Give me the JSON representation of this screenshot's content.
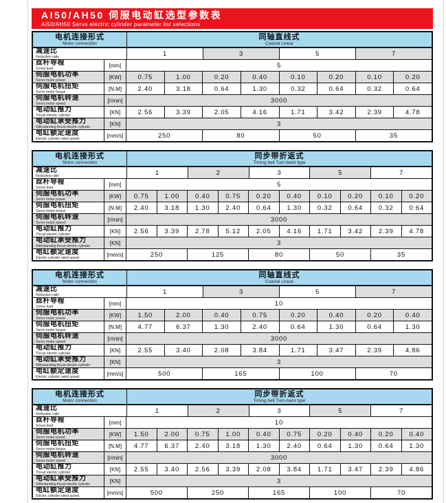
{
  "header": {
    "title": "AI50/AH50 伺服电动缸选型参数表",
    "subtitle": "AI50/AH50  Servo electric cylinder parameter list selections"
  },
  "colors": {
    "accent_red": "#e9141d",
    "header_blue": "#a6d9f0",
    "cell_gray": "#dedede"
  },
  "row_labels": {
    "connection": {
      "zh": "电机连接形式",
      "en": "Motor connection"
    },
    "ratio": {
      "zh": "减速比",
      "en": "Reduction ratio",
      "unit": ""
    },
    "lead": {
      "zh": "丝杆导程",
      "en": "Screw lead",
      "unit": "[mm]"
    },
    "power": {
      "zh": "伺服电机功率",
      "en": "Servo motor power",
      "unit": "[KW]"
    },
    "torque": {
      "zh": "伺服电机扭矩",
      "en": "Servo motor torque",
      "unit": "[N.M]"
    },
    "speed": {
      "zh": "伺服电机转速",
      "en": "Servo motor speed",
      "unit": "[r/min]"
    },
    "thrust": {
      "zh": "电动缸推力",
      "en": "Thrust electric cylinder",
      "unit": "[KN]"
    },
    "withstand": {
      "zh": "电动缸承受推力",
      "en": "Withstanding thrust electric cylinder",
      "unit": "[KN]"
    },
    "rated": {
      "zh": "电缸额定速度",
      "en": "Electric cylinder rated speed",
      "unit": "[mm/s]"
    }
  },
  "tables": [
    {
      "type_zh": "同轴直线式",
      "type_en": "Coaxial Linear",
      "ratios": [
        "1",
        "3",
        "5",
        "7"
      ],
      "screw_lead": "5",
      "power": [
        "0.75",
        "1.00",
        "0.20",
        "0.40",
        "0.10",
        "0.20",
        "0.10",
        "0.20"
      ],
      "torque": [
        "2.40",
        "3.18",
        "0.64",
        "1.30",
        "0.32",
        "0.64",
        "0.32",
        "0.64"
      ],
      "motor_speed": "3000",
      "thrust": [
        "2.56",
        "3.39",
        "2.05",
        "4.16",
        "1.71",
        "3.42",
        "2.39",
        "4.78"
      ],
      "withstand": "3",
      "rated_speed": [
        "250",
        "80",
        "50",
        "35"
      ]
    },
    {
      "type_zh": "同步带折返式",
      "type_en": "Timing belt Turn-back type",
      "ratios": [
        "1",
        "2",
        "3",
        "5",
        "7"
      ],
      "screw_lead": "5",
      "power": [
        "0.75",
        "1.00",
        "0.40",
        "0.75",
        "0.20",
        "0.40",
        "0.10",
        "0.20",
        "0.10",
        "0.20"
      ],
      "torque": [
        "2.40",
        "3.18",
        "1.30",
        "2.40",
        "0.64",
        "1.30",
        "0.32",
        "0.64",
        "0.32",
        "0.64"
      ],
      "motor_speed": "3000",
      "thrust": [
        "2.56",
        "3.39",
        "2.78",
        "5.12",
        "2.05",
        "4.16",
        "1.71",
        "3.42",
        "2.39",
        "4.78"
      ],
      "withstand": "3",
      "rated_speed": [
        "250",
        "125",
        "80",
        "50",
        "35"
      ]
    },
    {
      "type_zh": "同轴直线式",
      "type_en": "Coaxial Linear",
      "ratios": [
        "1",
        "3",
        "5",
        "7"
      ],
      "screw_lead": "10",
      "power": [
        "1.50",
        "2.00",
        "0.40",
        "0.75",
        "0.20",
        "0.40",
        "0.20",
        "0.40"
      ],
      "torque": [
        "4.77",
        "6.37",
        "1.30",
        "2.40",
        "0.64",
        "1.30",
        "0.64",
        "1.30"
      ],
      "motor_speed": "3000",
      "thrust": [
        "2.55",
        "3.40",
        "2.08",
        "3.84",
        "1.71",
        "3.47",
        "2.39",
        "4.86"
      ],
      "withstand": "3",
      "rated_speed": [
        "500",
        "165",
        "100",
        "70"
      ]
    },
    {
      "type_zh": "同步带折返式",
      "type_en": "Timing belt Turn-back type",
      "ratios": [
        "1",
        "2",
        "3",
        "5",
        "7"
      ],
      "screw_lead": "10",
      "power": [
        "1.50",
        "2.00",
        "0.75",
        "1.00",
        "0.40",
        "0.75",
        "0.20",
        "0.40",
        "0.20",
        "0.40"
      ],
      "torque": [
        "4.77",
        "6.37",
        "2.40",
        "3.18",
        "1.30",
        "2.40",
        "0.64",
        "1.30",
        "0.64",
        "1.30"
      ],
      "motor_speed": "3000",
      "thrust": [
        "2.55",
        "3.40",
        "2.56",
        "3.39",
        "2.08",
        "3.84",
        "1.71",
        "3.47",
        "2.39",
        "4.86"
      ],
      "withstand": "3",
      "rated_speed": [
        "500",
        "250",
        "165",
        "100",
        "70"
      ]
    }
  ]
}
